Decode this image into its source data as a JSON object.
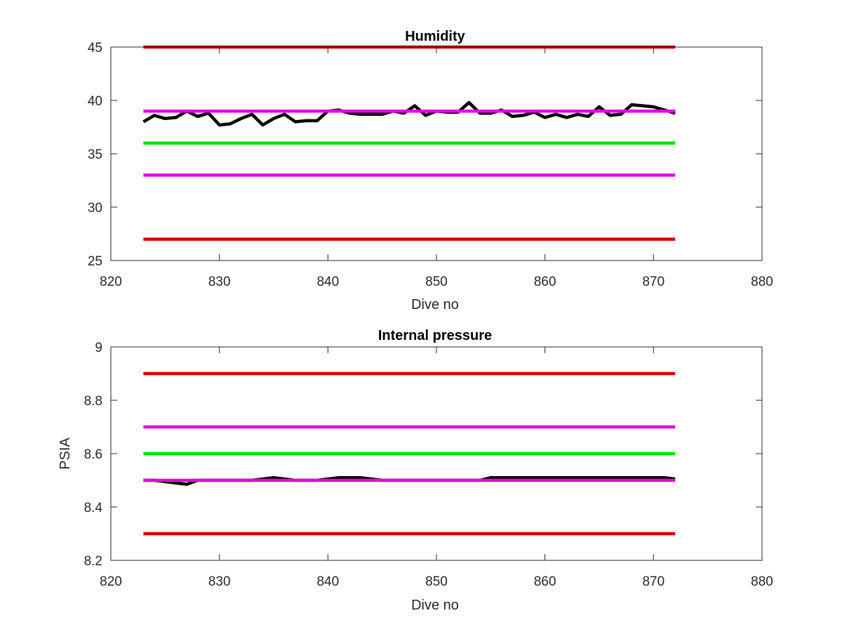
{
  "chart_data": [
    {
      "type": "line",
      "title": "Humidity",
      "xlabel": "Dive no",
      "ylabel": "",
      "xlim": [
        820,
        880
      ],
      "ylim": [
        25,
        45
      ],
      "xticks": [
        "820",
        "830",
        "840",
        "850",
        "860",
        "870",
        "880"
      ],
      "yticks": [
        "25",
        "30",
        "35",
        "40",
        "45"
      ],
      "grid": false,
      "series": [
        {
          "color": "#000000",
          "x": [
            823,
            824,
            825,
            826,
            827,
            828,
            829,
            830,
            831,
            832,
            833,
            834,
            835,
            836,
            837,
            838,
            839,
            840,
            841,
            842,
            843,
            844,
            845,
            846,
            847,
            848,
            849,
            850,
            851,
            852,
            853,
            854,
            855,
            856,
            857,
            858,
            859,
            860,
            861,
            862,
            863,
            864,
            865,
            866,
            867,
            868,
            869,
            870,
            871,
            872
          ],
          "values": [
            38.0,
            38.6,
            38.3,
            38.4,
            39.0,
            38.5,
            38.8,
            37.7,
            37.8,
            38.3,
            38.7,
            37.7,
            38.3,
            38.7,
            38.0,
            38.1,
            38.1,
            39.0,
            39.1,
            38.8,
            38.7,
            38.7,
            38.7,
            39.0,
            38.8,
            39.5,
            38.6,
            39.0,
            38.9,
            38.9,
            39.8,
            38.8,
            38.8,
            39.1,
            38.5,
            38.6,
            38.9,
            38.4,
            38.7,
            38.4,
            38.7,
            38.5,
            39.4,
            38.6,
            38.7,
            39.6,
            39.5,
            39.4,
            39.1,
            38.8
          ]
        },
        {
          "color": "#d40000",
          "x": [
            823,
            872
          ],
          "values": [
            45,
            45
          ]
        },
        {
          "color": "#e600e6",
          "x": [
            823,
            872
          ],
          "values": [
            39,
            39
          ]
        },
        {
          "color": "#00e600",
          "x": [
            823,
            872
          ],
          "values": [
            36,
            36
          ]
        },
        {
          "color": "#e600e6",
          "x": [
            823,
            872
          ],
          "values": [
            33,
            33
          ]
        },
        {
          "color": "#d40000",
          "x": [
            823,
            872
          ],
          "values": [
            27,
            27
          ]
        }
      ]
    },
    {
      "type": "line",
      "title": "Internal pressure",
      "xlabel": "Dive no",
      "ylabel": "PSIA",
      "xlim": [
        820,
        880
      ],
      "ylim": [
        8.2,
        9
      ],
      "xticks": [
        "820",
        "830",
        "840",
        "850",
        "860",
        "870",
        "880"
      ],
      "yticks": [
        "8.2",
        "8.4",
        "8.6",
        "8.8",
        "9"
      ],
      "grid": false,
      "series": [
        {
          "color": "#000000",
          "x": [
            823,
            824,
            825,
            826,
            827,
            828,
            829,
            830,
            831,
            832,
            833,
            834,
            835,
            836,
            837,
            838,
            839,
            840,
            841,
            842,
            843,
            844,
            845,
            846,
            847,
            848,
            849,
            850,
            851,
            852,
            853,
            854,
            855,
            856,
            857,
            858,
            859,
            860,
            861,
            862,
            863,
            864,
            865,
            866,
            867,
            868,
            869,
            870,
            871,
            872
          ],
          "values": [
            8.5,
            8.5,
            8.495,
            8.49,
            8.485,
            8.5,
            8.5,
            8.5,
            8.5,
            8.5,
            8.5,
            8.505,
            8.51,
            8.505,
            8.5,
            8.5,
            8.5,
            8.505,
            8.51,
            8.51,
            8.51,
            8.505,
            8.5,
            8.5,
            8.5,
            8.5,
            8.5,
            8.5,
            8.5,
            8.5,
            8.5,
            8.5,
            8.51,
            8.51,
            8.51,
            8.51,
            8.51,
            8.51,
            8.51,
            8.51,
            8.51,
            8.51,
            8.51,
            8.51,
            8.51,
            8.51,
            8.51,
            8.51,
            8.51,
            8.505
          ]
        },
        {
          "color": "#d40000",
          "x": [
            823,
            872
          ],
          "values": [
            8.9,
            8.9
          ]
        },
        {
          "color": "#e600e6",
          "x": [
            823,
            872
          ],
          "values": [
            8.7,
            8.7
          ]
        },
        {
          "color": "#00e600",
          "x": [
            823,
            872
          ],
          "values": [
            8.6,
            8.6
          ]
        },
        {
          "color": "#e600e6",
          "x": [
            823,
            872
          ],
          "values": [
            8.5,
            8.5
          ]
        },
        {
          "color": "#d40000",
          "x": [
            823,
            872
          ],
          "values": [
            8.3,
            8.3
          ]
        }
      ]
    }
  ]
}
